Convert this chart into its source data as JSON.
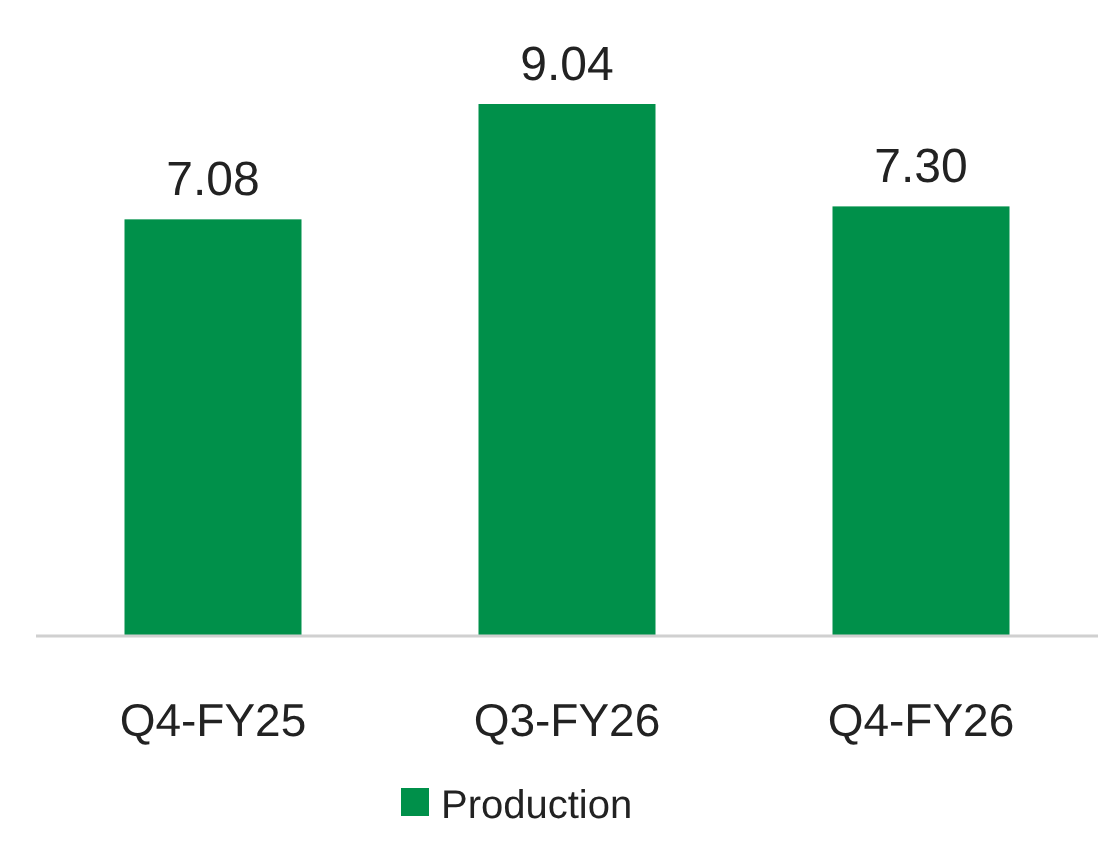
{
  "chart_data": {
    "type": "bar",
    "categories": [
      "Q4-FY25",
      "Q3-FY26",
      "Q4-FY26"
    ],
    "series": [
      {
        "name": "Production",
        "color": "#00904a",
        "values": [
          7.08,
          9.04,
          7.3
        ],
        "value_labels": [
          "7.08",
          "9.04",
          "7.30"
        ]
      }
    ],
    "tick_labels": "x",
    "legend": "bottom"
  }
}
